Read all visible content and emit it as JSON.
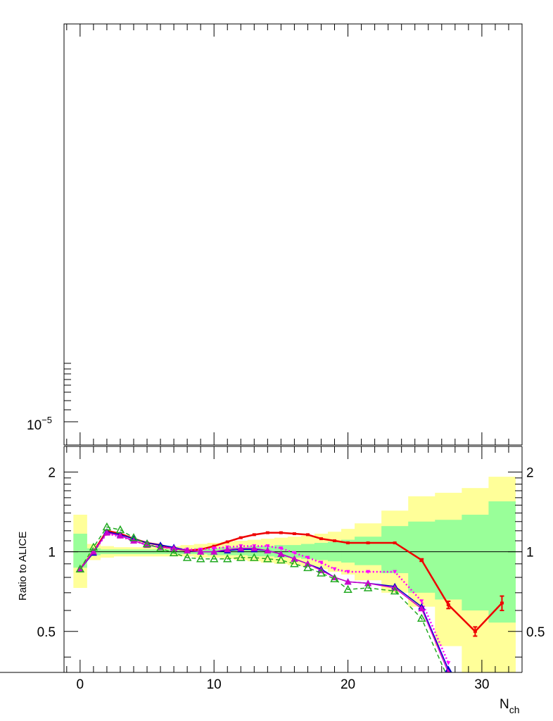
{
  "chart_data": [
    {
      "type": "line",
      "panel": "top",
      "yscale": "log",
      "ytick_label": "10−5",
      "ytick_base": "10",
      "ytick_exp": "−5",
      "series": []
    },
    {
      "type": "line",
      "panel": "ratio",
      "ylabel": "Ratio to ALICE",
      "xlabel_main": "N",
      "xlabel_sub": "ch",
      "xlim": [
        -1.2,
        33
      ],
      "ylim": [
        0.35,
        2.5
      ],
      "yscale": "log",
      "reference_line": 1,
      "xticks": [
        "0",
        "10",
        "20",
        "30"
      ],
      "yticks": [
        "0.5",
        "1",
        "2"
      ],
      "bands": {
        "outer_color": "#ffff99",
        "inner_color": "#99ff99",
        "edges": [
          -0.5,
          0.5,
          1.5,
          2.5,
          3.5,
          4.5,
          5.5,
          6.5,
          7.5,
          8.5,
          9.5,
          10.5,
          11.5,
          12.5,
          13.5,
          14.5,
          15.5,
          16.5,
          17.5,
          18.5,
          19.5,
          20.5,
          22.5,
          24.5,
          26.5,
          28.5,
          30.5,
          32.5
        ],
        "outer_lo": [
          0.73,
          0.93,
          0.95,
          0.96,
          0.96,
          0.96,
          0.96,
          0.96,
          0.96,
          0.95,
          0.95,
          0.94,
          0.93,
          0.92,
          0.91,
          0.9,
          0.89,
          0.88,
          0.86,
          0.84,
          0.82,
          0.78,
          0.7,
          0.62,
          0.44,
          0.35,
          0.35
        ],
        "outer_hi": [
          1.38,
          1.07,
          1.05,
          1.04,
          1.04,
          1.04,
          1.04,
          1.05,
          1.06,
          1.07,
          1.08,
          1.09,
          1.1,
          1.11,
          1.12,
          1.13,
          1.14,
          1.15,
          1.17,
          1.19,
          1.22,
          1.28,
          1.43,
          1.62,
          1.67,
          1.74,
          1.92
        ],
        "inner_lo": [
          0.87,
          0.97,
          0.98,
          0.98,
          0.98,
          0.98,
          0.98,
          0.98,
          0.98,
          0.98,
          0.97,
          0.97,
          0.97,
          0.96,
          0.96,
          0.95,
          0.95,
          0.94,
          0.93,
          0.92,
          0.91,
          0.89,
          0.83,
          0.7,
          0.66,
          0.6,
          0.54
        ],
        "inner_hi": [
          1.17,
          1.03,
          1.02,
          1.02,
          1.02,
          1.02,
          1.02,
          1.02,
          1.02,
          1.03,
          1.03,
          1.04,
          1.04,
          1.05,
          1.05,
          1.06,
          1.06,
          1.07,
          1.08,
          1.09,
          1.11,
          1.14,
          1.25,
          1.3,
          1.32,
          1.38,
          1.55
        ]
      },
      "series": [
        {
          "color": "#ee0000",
          "style": "solid",
          "marker": "bar",
          "width": 2.5,
          "x": [
            0,
            1,
            2,
            3,
            4,
            5,
            6,
            7,
            8,
            9,
            10,
            11,
            12,
            13,
            14,
            15,
            16,
            17,
            18,
            19,
            20,
            21.5,
            23.5,
            25.5,
            27.5,
            29.5,
            31.5
          ],
          "y": [
            0.86,
            1.0,
            1.2,
            1.17,
            1.12,
            1.08,
            1.06,
            1.03,
            1.01,
            1.02,
            1.05,
            1.09,
            1.13,
            1.16,
            1.18,
            1.18,
            1.17,
            1.16,
            1.12,
            1.1,
            1.08,
            1.08,
            1.08,
            0.93,
            0.63,
            0.5,
            0.64
          ],
          "err": [
            0,
            0,
            0,
            0,
            0,
            0,
            0,
            0,
            0,
            0,
            0,
            0,
            0,
            0,
            0,
            0,
            0,
            0,
            0,
            0,
            0,
            0,
            0,
            0.01,
            0.02,
            0.02,
            0.04
          ]
        },
        {
          "color": "#ff00ff",
          "style": "dotted",
          "marker": "tri-down",
          "width": 2.5,
          "x": [
            0,
            1,
            2,
            3,
            4,
            5,
            6,
            7,
            8,
            9,
            10,
            11,
            12,
            13,
            14,
            15,
            16,
            17,
            18,
            19,
            20,
            21.5,
            23.5,
            25.5,
            27.5
          ],
          "y": [
            0.86,
            1.0,
            1.17,
            1.14,
            1.1,
            1.06,
            1.04,
            1.03,
            1.02,
            1.02,
            1.03,
            1.04,
            1.05,
            1.05,
            1.05,
            1.03,
            0.99,
            0.95,
            0.91,
            0.86,
            0.84,
            0.84,
            0.84,
            0.65,
            0.38
          ]
        },
        {
          "color": "#0000cc",
          "style": "solid",
          "marker": "tri-up",
          "width": 1.5,
          "x": [
            0,
            1,
            2,
            3,
            4,
            5,
            6,
            7,
            8,
            9,
            10,
            11,
            12,
            13,
            14,
            15,
            16,
            17,
            18,
            19,
            20,
            21.5,
            23.5,
            25.5,
            27.5
          ],
          "y": [
            0.86,
            0.99,
            1.19,
            1.16,
            1.12,
            1.08,
            1.06,
            1.04,
            1.01,
            1.0,
            1.0,
            1.01,
            1.02,
            1.02,
            1.01,
            0.98,
            0.94,
            0.9,
            0.86,
            0.8,
            0.77,
            0.76,
            0.74,
            0.62,
            0.36
          ]
        },
        {
          "color": "#cc00cc",
          "style": "solid",
          "marker": "tri-up",
          "width": 1.5,
          "x": [
            0,
            1,
            2,
            3,
            4,
            5,
            6,
            7,
            8,
            9,
            10,
            11,
            12,
            13,
            14,
            15,
            16,
            17,
            18,
            19,
            20,
            21.5,
            23.5,
            25.5,
            27.5
          ],
          "y": [
            0.86,
            1.0,
            1.18,
            1.15,
            1.1,
            1.06,
            1.04,
            1.03,
            1.01,
            1.0,
            1.0,
            1.02,
            1.03,
            1.03,
            1.01,
            0.98,
            0.94,
            0.9,
            0.85,
            0.8,
            0.77,
            0.76,
            0.73,
            0.61,
            0.35
          ]
        },
        {
          "color": "#22aa22",
          "style": "dashed",
          "marker": "tri-open",
          "width": 1.5,
          "x": [
            0,
            1,
            2,
            3,
            4,
            5,
            6,
            7,
            8,
            9,
            10,
            11,
            12,
            13,
            14,
            15,
            16,
            17,
            18,
            19,
            20,
            21.5,
            23.5,
            25.5,
            27.5
          ],
          "y": [
            0.86,
            1.04,
            1.24,
            1.21,
            1.13,
            1.07,
            1.03,
            0.99,
            0.95,
            0.94,
            0.94,
            0.94,
            0.95,
            0.95,
            0.94,
            0.93,
            0.9,
            0.87,
            0.83,
            0.79,
            0.72,
            0.73,
            0.71,
            0.56,
            0.33
          ]
        }
      ]
    }
  ]
}
